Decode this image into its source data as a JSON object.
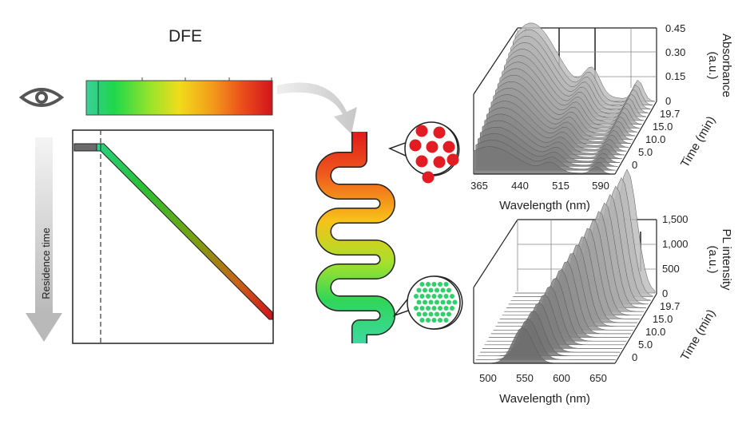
{
  "dfe_label": "DFE",
  "residence_label": "Residence time",
  "eye_icon": "eye-icon",
  "colors": {
    "gradient": [
      "#2ecf92",
      "#22d84e",
      "#c8e81e",
      "#f5d318",
      "#f08a1a",
      "#e33a1a",
      "#d2141c"
    ],
    "red_particle": "#e31b23",
    "green_particle": "#2fd06a"
  },
  "abs_plot": {
    "xlabel": "Wavelength (nm)",
    "xticks": [
      "365",
      "440",
      "515",
      "590"
    ],
    "zlabel_line1": "Absorbance",
    "zlabel_line2": "(a.u.)",
    "zticks": [
      "0.45",
      "0.30",
      "0.15",
      "0"
    ],
    "ylabel": "Time (min)",
    "yticks": [
      "19.7",
      "15.0",
      "10.0",
      "5.0",
      "0"
    ]
  },
  "pl_plot": {
    "xlabel": "Wavelength (nm)",
    "xticks": [
      "500",
      "550",
      "600",
      "650"
    ],
    "zlabel_line1": "PL intensity",
    "zlabel_line2": "(a.u.)",
    "zticks": [
      "1,500",
      "1,000",
      "500",
      "0"
    ],
    "ylabel": "Time (min)",
    "yticks": [
      "19.7",
      "15.0",
      "10.0",
      "5.0",
      "0"
    ]
  }
}
